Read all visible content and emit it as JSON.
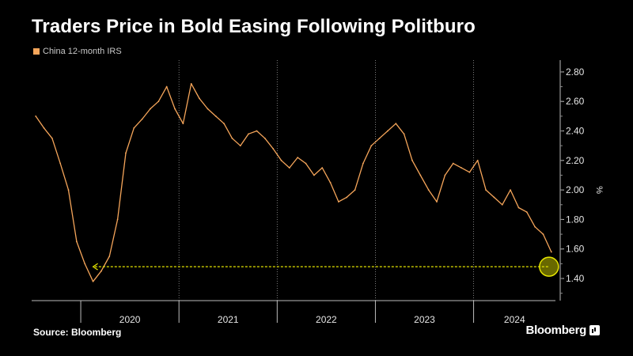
{
  "header": {
    "title": "Traders Price in Bold Easing Following Politburo"
  },
  "footer": {
    "source": "Source: Bloomberg",
    "brand": "Bloomberg"
  },
  "colors": {
    "background": "#000000",
    "series": "#f5a55a",
    "annotation": "#e6e600",
    "grid": "#9a9a9a"
  },
  "chart_data": {
    "type": "line",
    "title": "Traders Price in Bold Easing Following Politburo",
    "xlabel": "",
    "ylabel": "%",
    "x_range": [
      "2019-07-01",
      "2024-11-01"
    ],
    "ylim": [
      1.25,
      2.88
    ],
    "y_ticks": [
      1.4,
      1.6,
      1.8,
      2.0,
      2.2,
      2.4,
      2.6,
      2.8
    ],
    "y_tick_labels": [
      "1.40",
      "1.60",
      "1.80",
      "2.00",
      "2.20",
      "2.40",
      "2.60",
      "2.80"
    ],
    "x_category_labels": [
      "2020",
      "2021",
      "2022",
      "2023",
      "2024"
    ],
    "grid": "vertical dotted at year boundaries, y-axis on right",
    "legend": "top-left",
    "series": [
      {
        "name": "China 12-month IRS",
        "x": [
          "2019-07",
          "2019-08",
          "2019-09",
          "2019-10",
          "2019-11",
          "2019-12",
          "2020-01",
          "2020-02",
          "2020-03",
          "2020-04",
          "2020-05",
          "2020-06",
          "2020-07",
          "2020-08",
          "2020-09",
          "2020-10",
          "2020-11",
          "2020-12",
          "2021-01",
          "2021-02",
          "2021-03",
          "2021-04",
          "2021-05",
          "2021-06",
          "2021-07",
          "2021-08",
          "2021-09",
          "2021-10",
          "2021-11",
          "2021-12",
          "2022-01",
          "2022-02",
          "2022-03",
          "2022-04",
          "2022-05",
          "2022-06",
          "2022-07",
          "2022-08",
          "2022-09",
          "2022-10",
          "2022-11",
          "2022-12",
          "2023-01",
          "2023-02",
          "2023-03",
          "2023-04",
          "2023-05",
          "2023-06",
          "2023-07",
          "2023-08",
          "2023-09",
          "2023-10",
          "2023-11",
          "2023-12",
          "2024-01",
          "2024-02",
          "2024-03",
          "2024-04",
          "2024-05",
          "2024-06",
          "2024-07",
          "2024-08",
          "2024-09",
          "2024-10"
        ],
        "values": [
          2.5,
          2.42,
          2.35,
          2.18,
          2.0,
          1.65,
          1.5,
          1.38,
          1.45,
          1.55,
          1.8,
          2.25,
          2.42,
          2.48,
          2.55,
          2.6,
          2.7,
          2.55,
          2.45,
          2.72,
          2.62,
          2.55,
          2.5,
          2.45,
          2.35,
          2.3,
          2.38,
          2.4,
          2.35,
          2.28,
          2.2,
          2.15,
          2.22,
          2.18,
          2.1,
          2.15,
          2.05,
          1.92,
          1.95,
          2.0,
          2.18,
          2.3,
          2.35,
          2.4,
          2.45,
          2.38,
          2.2,
          2.1,
          2.0,
          1.92,
          2.1,
          2.18,
          2.15,
          2.12,
          2.2,
          2.0,
          1.95,
          1.9,
          2.0,
          1.88,
          1.85,
          1.75,
          1.7,
          1.58
        ]
      }
    ],
    "annotations": [
      {
        "type": "dashed-arrow",
        "from_x": "2024-10",
        "to_x": "2020-02",
        "y": 1.48
      },
      {
        "type": "circle-highlight",
        "x": "2024-10",
        "y": 1.48
      }
    ]
  }
}
